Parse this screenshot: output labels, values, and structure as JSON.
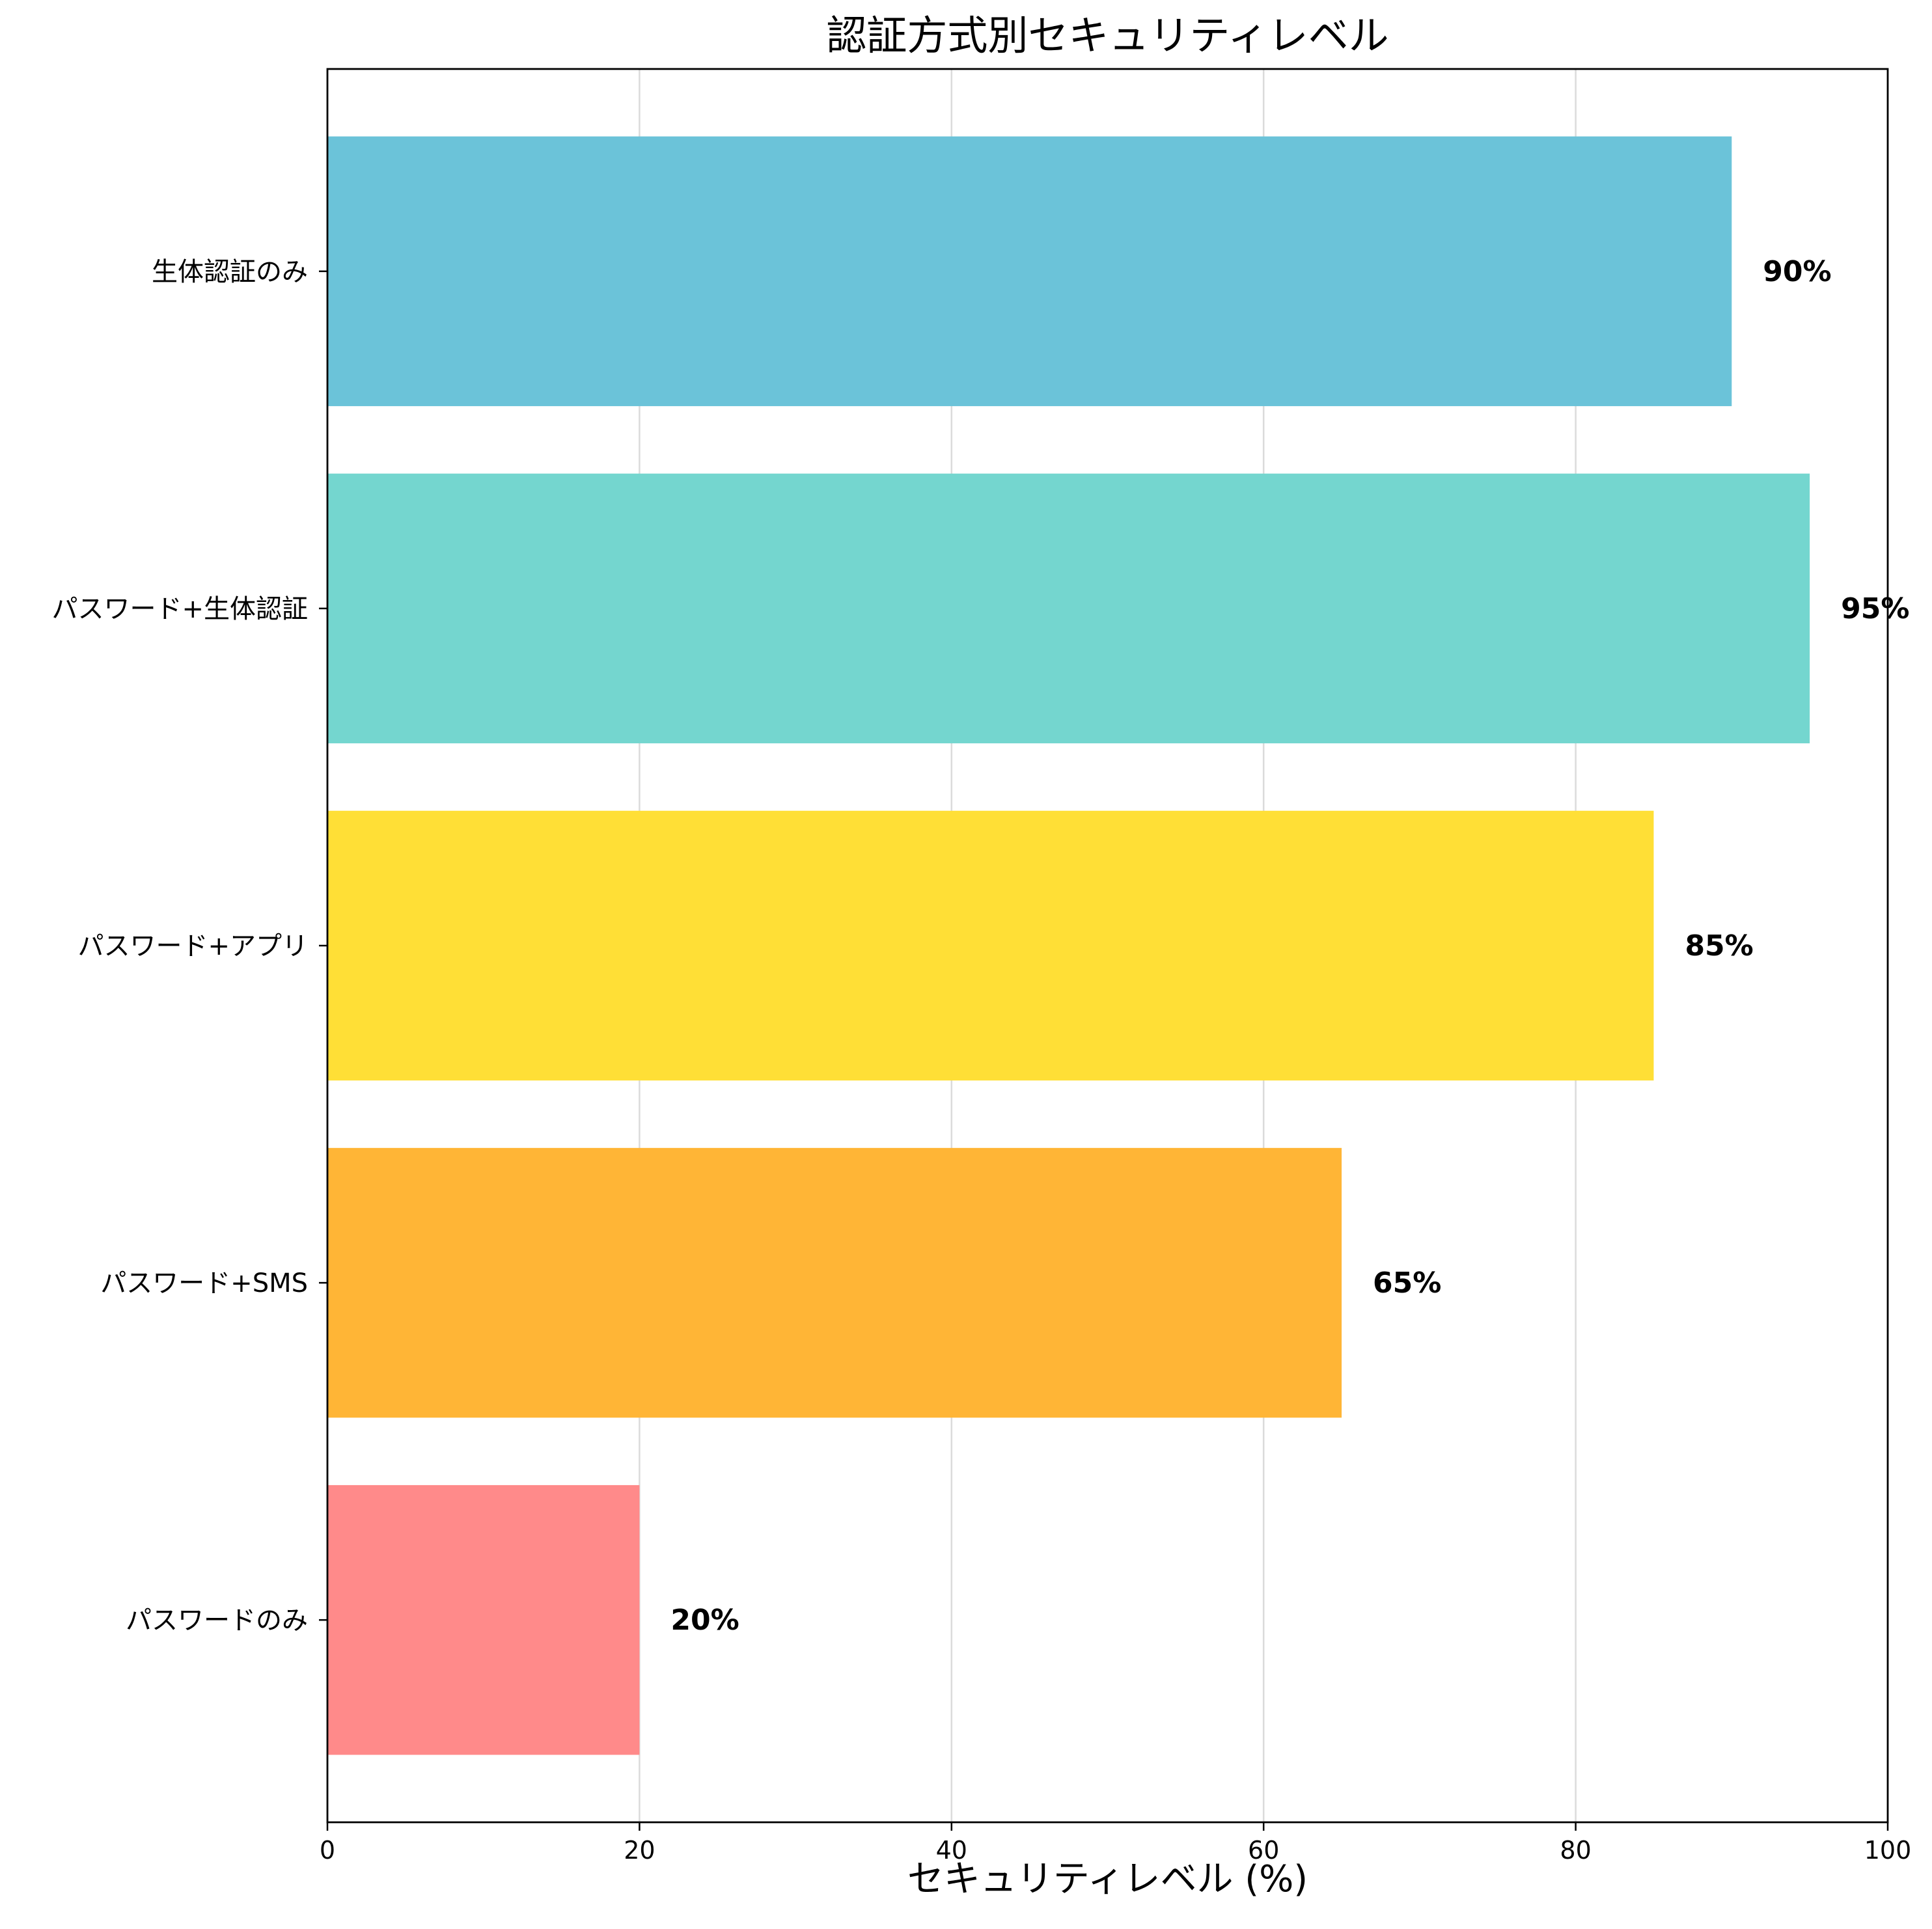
{
  "chart_data": {
    "type": "bar",
    "orientation": "horizontal",
    "title": "認証方式別セキュリティレベル",
    "xlabel": "セキュリティレベル (%)",
    "ylabel": "",
    "xlim": [
      0,
      100
    ],
    "xticks": [
      0,
      20,
      40,
      60,
      80,
      100
    ],
    "grid": "vertical",
    "categories": [
      "パスワードのみ",
      "パスワード+SMS",
      "パスワード+アプリ",
      "パスワード+生体認証",
      "生体認証のみ"
    ],
    "values": [
      20,
      65,
      85,
      95,
      90
    ],
    "value_labels": [
      "20%",
      "65%",
      "85%",
      "95%",
      "90%"
    ],
    "colors": [
      "#FF8A8A",
      "#FFB536",
      "#FFDF36",
      "#74D6CF",
      "#6BC3D9"
    ]
  }
}
